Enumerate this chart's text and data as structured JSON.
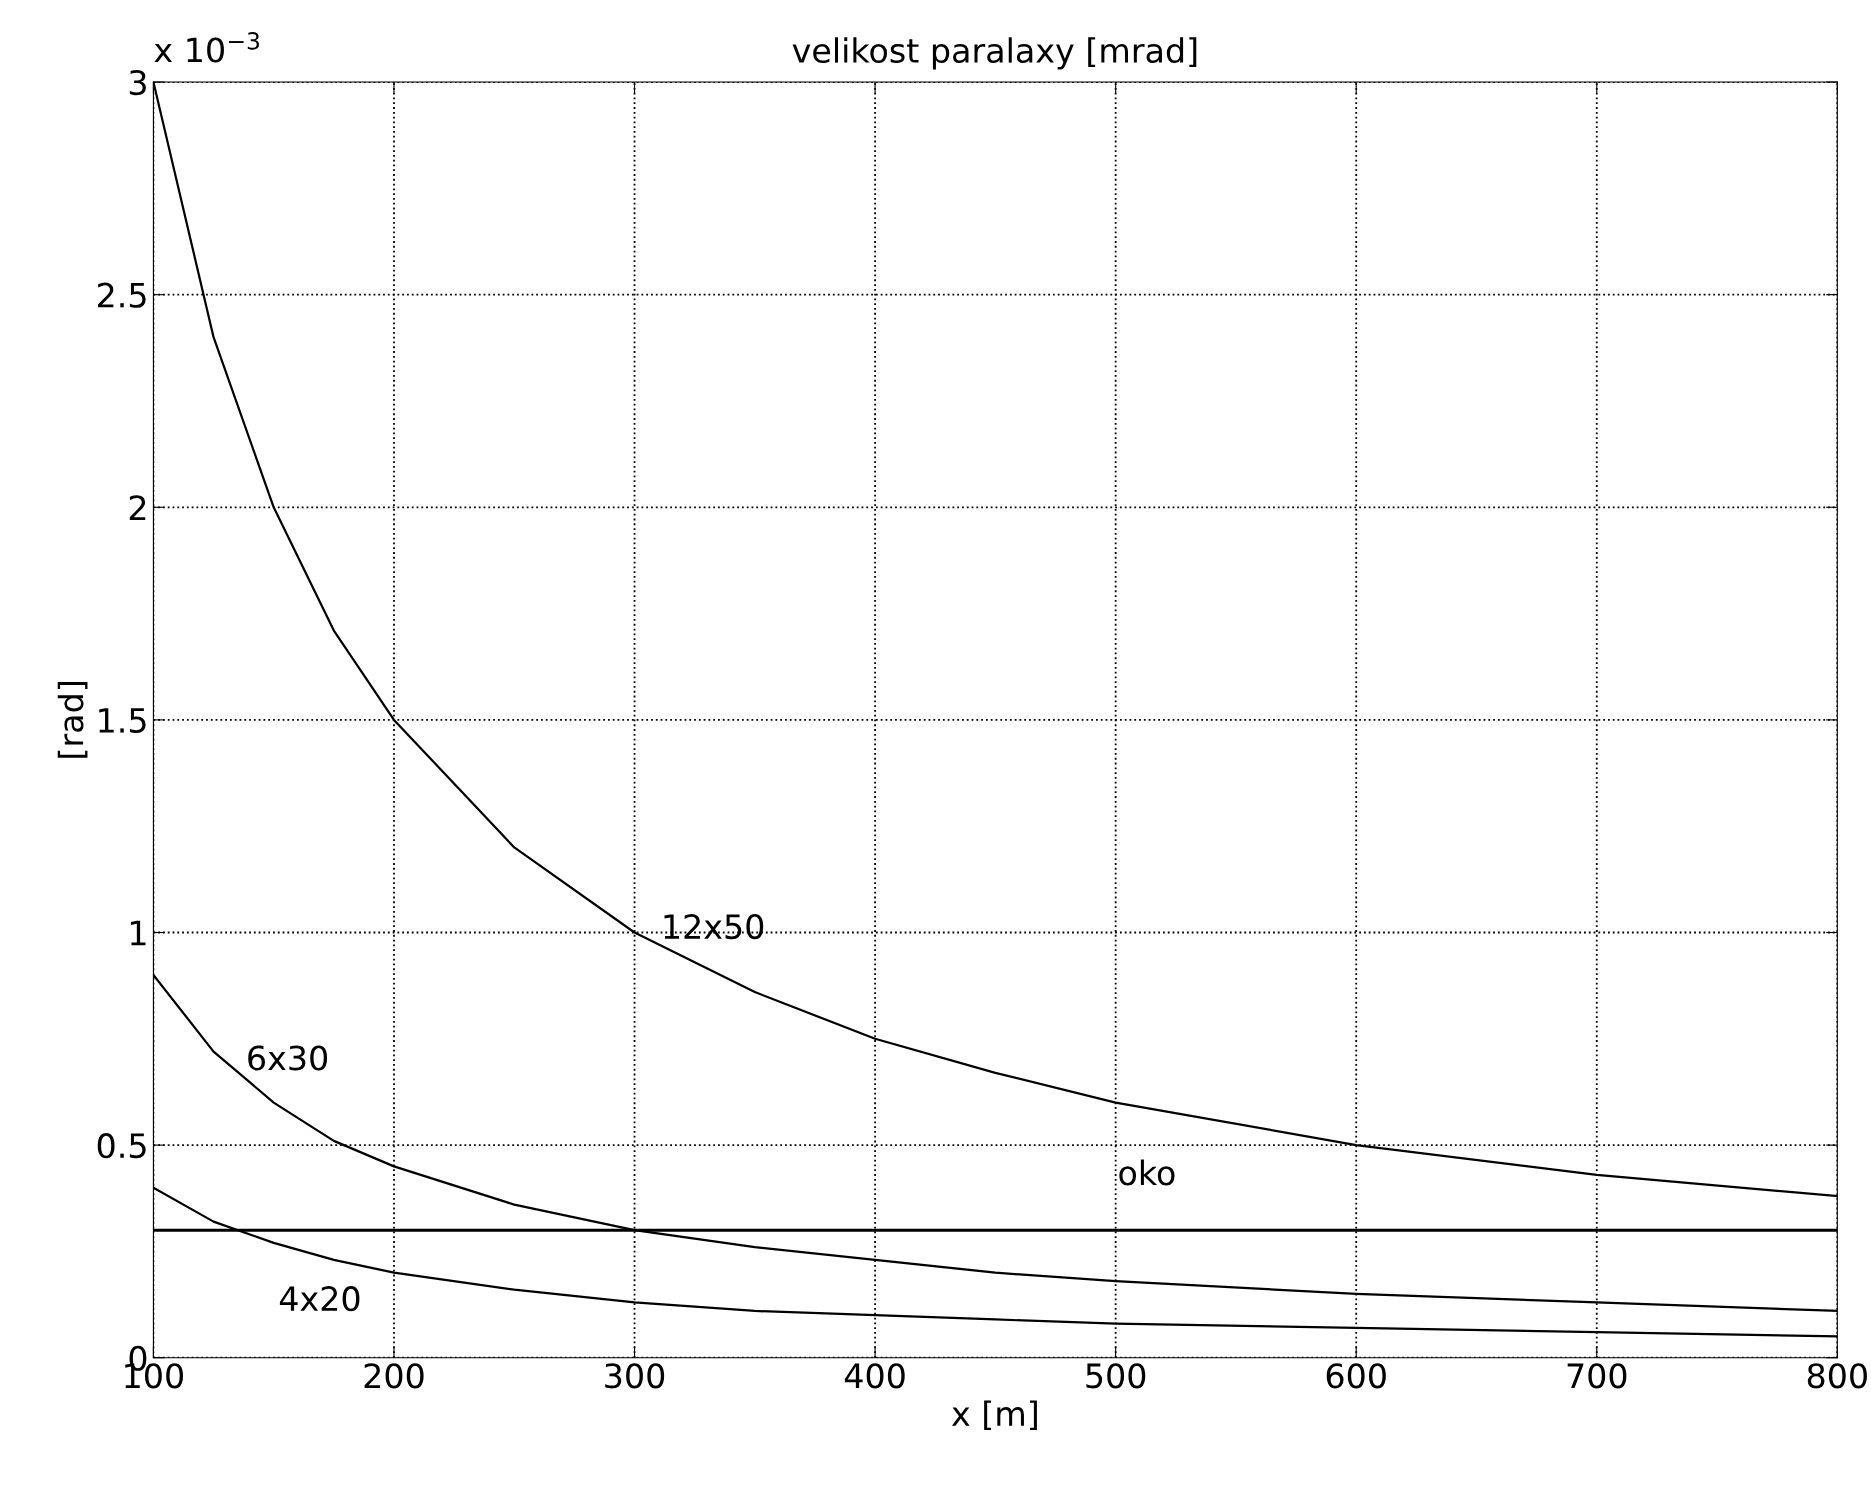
{
  "chart_data": {
    "type": "line",
    "title": "velikost paralaxy [mrad]",
    "xlabel": "x [m]",
    "ylabel": "[rad]",
    "x": [
      100,
      125,
      150,
      175,
      200,
      250,
      300,
      350,
      400,
      450,
      500,
      600,
      700,
      800
    ],
    "series": [
      {
        "name": "12x50",
        "color": "#000000",
        "values": [
          3.0,
          2.4,
          2.0,
          1.71,
          1.5,
          1.2,
          1.0,
          0.86,
          0.75,
          0.67,
          0.6,
          0.5,
          0.43,
          0.38
        ]
      },
      {
        "name": "6x30",
        "color": "#000000",
        "values": [
          0.9,
          0.72,
          0.6,
          0.51,
          0.45,
          0.36,
          0.3,
          0.26,
          0.23,
          0.2,
          0.18,
          0.15,
          0.13,
          0.11
        ]
      },
      {
        "name": "4x20",
        "color": "#000000",
        "values": [
          0.4,
          0.32,
          0.27,
          0.23,
          0.2,
          0.16,
          0.13,
          0.11,
          0.1,
          0.09,
          0.08,
          0.07,
          0.06,
          0.05
        ]
      }
    ],
    "ref_lines": [
      {
        "axis": "y",
        "value": 0.3,
        "label": "oko",
        "color": "#000000",
        "line_style": "solid"
      }
    ],
    "annotations": [
      "x 10$^{−3}$"
    ],
    "xlim": [
      100,
      800
    ],
    "xticks": [
      100,
      200,
      300,
      400,
      500,
      600,
      700,
      800
    ],
    "ylim": [
      0,
      3
    ],
    "yticks": [
      0,
      0.5,
      1,
      1.5,
      2,
      2.5,
      3
    ],
    "grid": true,
    "line_style": "solid",
    "marker": "none"
  }
}
